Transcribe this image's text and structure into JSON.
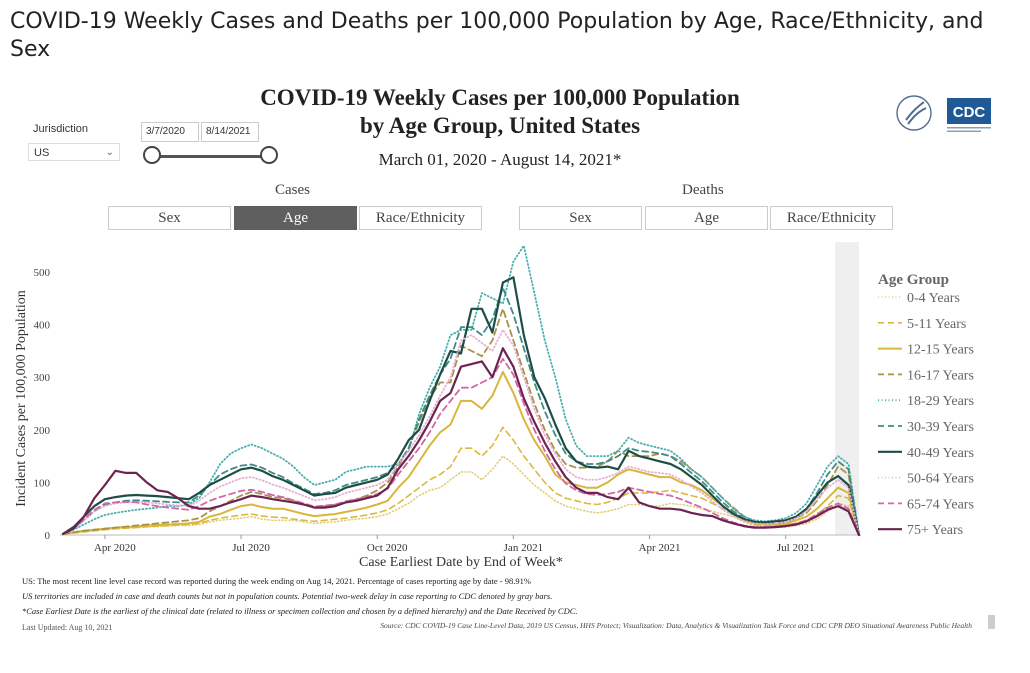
{
  "page_title": "COVID-19 Weekly Cases and Deaths per 100,000 Population by Age, Race/Ethnicity, and Sex",
  "dashboard": {
    "title_line1": "COVID-19 Weekly Cases per 100,000 Population",
    "title_line2": "by Age Group, United States",
    "subtitle": "March 01, 2020 - August 14, 2021*"
  },
  "filters": {
    "jurisdiction_label": "Jurisdiction",
    "jurisdiction_value": "US",
    "date_start": "3/7/2020",
    "date_end": "8/14/2021"
  },
  "cases_group": {
    "label": "Cases",
    "tabs": [
      "Sex",
      "Age",
      "Race/Ethnicity"
    ],
    "active": "Age"
  },
  "deaths_group": {
    "label": "Deaths",
    "tabs": [
      "Sex",
      "Age",
      "Race/Ethnicity"
    ]
  },
  "chart_data": {
    "type": "line",
    "xlabel": "Case Earliest Date by End of Week*",
    "ylabel": "Incident Cases per 100,000 Population",
    "ylim": [
      0,
      560
    ],
    "yticks": [
      0,
      100,
      200,
      300,
      400,
      500
    ],
    "xticks": [
      {
        "label": "Apr 2020",
        "week": 4
      },
      {
        "label": "Jul 2020",
        "week": 17
      },
      {
        "label": "Oct 2020",
        "week": 30
      },
      {
        "label": "Jan 2021",
        "week": 43
      },
      {
        "label": "Apr 2021",
        "week": 56
      },
      {
        "label": "Jul 2021",
        "week": 69
      }
    ],
    "x_start": "2020-03-07",
    "x_end": "2021-08-14",
    "x_interval": "weekly",
    "grid": false,
    "legend_title": "Age Group",
    "legend_position": "right",
    "shaded_region_weeks": [
      74,
      76
    ],
    "series": [
      {
        "name": "0-4 Years",
        "color": "#e3cd74",
        "dash": "1,2.5",
        "width": 1.6,
        "values": [
          2,
          4,
          6,
          8,
          10,
          12,
          13,
          14,
          15,
          16,
          17,
          18,
          18,
          20,
          25,
          28,
          30,
          32,
          35,
          30,
          28,
          28,
          28,
          25,
          22,
          24,
          25,
          28,
          30,
          32,
          35,
          40,
          50,
          60,
          75,
          85,
          90,
          105,
          120,
          120,
          105,
          125,
          150,
          135,
          115,
          95,
          80,
          65,
          55,
          50,
          45,
          42,
          45,
          50,
          58,
          58,
          55,
          55,
          60,
          58,
          55,
          50,
          45,
          40,
          35,
          25,
          18,
          15,
          15,
          15,
          18,
          22,
          30,
          45,
          60,
          55,
          0
        ]
      },
      {
        "name": "5-11 Years",
        "color": "#dbb940",
        "dash": "6,4",
        "width": 1.6,
        "values": [
          2,
          4,
          6,
          8,
          10,
          12,
          13,
          14,
          16,
          17,
          18,
          19,
          20,
          22,
          28,
          32,
          35,
          38,
          40,
          36,
          34,
          33,
          30,
          28,
          26,
          28,
          30,
          32,
          35,
          38,
          42,
          48,
          60,
          75,
          90,
          105,
          115,
          130,
          165,
          165,
          150,
          170,
          205,
          180,
          150,
          125,
          100,
          80,
          70,
          65,
          60,
          58,
          62,
          70,
          80,
          80,
          80,
          82,
          85,
          80,
          75,
          70,
          60,
          50,
          40,
          28,
          20,
          18,
          18,
          20,
          22,
          28,
          38,
          55,
          75,
          70,
          0
        ]
      },
      {
        "name": "12-15 Years",
        "color": "#d8b63c",
        "dash": "",
        "width": 2,
        "values": [
          2,
          5,
          8,
          10,
          12,
          14,
          15,
          16,
          18,
          19,
          20,
          21,
          22,
          25,
          35,
          40,
          48,
          55,
          58,
          53,
          50,
          50,
          45,
          40,
          36,
          38,
          40,
          44,
          48,
          52,
          58,
          65,
          90,
          110,
          140,
          170,
          195,
          210,
          255,
          255,
          240,
          265,
          310,
          270,
          220,
          180,
          150,
          115,
          100,
          95,
          90,
          90,
          100,
          115,
          125,
          120,
          115,
          110,
          110,
          100,
          95,
          85,
          70,
          55,
          42,
          30,
          22,
          20,
          20,
          22,
          28,
          35,
          50,
          70,
          90,
          80,
          0
        ]
      },
      {
        "name": "16-17 Years",
        "color": "#a89248",
        "dash": "6,4",
        "width": 1.8,
        "values": [
          2,
          5,
          8,
          10,
          12,
          14,
          16,
          18,
          20,
          22,
          24,
          26,
          28,
          32,
          45,
          55,
          65,
          75,
          82,
          78,
          72,
          70,
          65,
          58,
          52,
          55,
          58,
          62,
          68,
          75,
          85,
          100,
          130,
          165,
          215,
          260,
          290,
          290,
          360,
          350,
          340,
          370,
          430,
          370,
          310,
          250,
          200,
          160,
          135,
          128,
          128,
          130,
          140,
          160,
          150,
          150,
          150,
          155,
          150,
          140,
          125,
          110,
          90,
          70,
          52,
          36,
          26,
          22,
          22,
          25,
          32,
          42,
          65,
          95,
          130,
          115,
          0
        ]
      },
      {
        "name": "18-29 Years",
        "color": "#4aaeb1",
        "dash": "1,2.5",
        "width": 1.8,
        "values": [
          2,
          10,
          20,
          30,
          38,
          42,
          45,
          48,
          50,
          52,
          55,
          55,
          58,
          70,
          100,
          135,
          155,
          165,
          172,
          165,
          155,
          145,
          130,
          110,
          95,
          100,
          105,
          120,
          125,
          130,
          130,
          130,
          135,
          160,
          230,
          280,
          320,
          380,
          390,
          390,
          460,
          450,
          440,
          520,
          550,
          460,
          370,
          300,
          220,
          170,
          150,
          150,
          150,
          160,
          185,
          175,
          170,
          165,
          160,
          145,
          125,
          110,
          90,
          70,
          50,
          35,
          28,
          26,
          28,
          32,
          42,
          60,
          95,
          130,
          150,
          135,
          0
        ]
      },
      {
        "name": "30-39 Years",
        "color": "#3e8c84",
        "dash": "6,4",
        "width": 1.8,
        "values": [
          2,
          12,
          28,
          45,
          58,
          62,
          65,
          66,
          65,
          64,
          63,
          62,
          62,
          75,
          95,
          115,
          125,
          132,
          134,
          128,
          118,
          110,
          98,
          88,
          78,
          80,
          85,
          95,
          100,
          105,
          110,
          118,
          135,
          165,
          220,
          265,
          305,
          335,
          395,
          395,
          380,
          410,
          470,
          420,
          355,
          290,
          235,
          190,
          155,
          140,
          135,
          135,
          140,
          150,
          165,
          160,
          158,
          155,
          150,
          135,
          118,
          102,
          82,
          62,
          45,
          32,
          25,
          23,
          23,
          27,
          35,
          50,
          80,
          115,
          140,
          125,
          0
        ]
      },
      {
        "name": "40-49 Years",
        "color": "#1e4d48",
        "dash": "",
        "width": 2.2,
        "values": [
          2,
          15,
          35,
          55,
          68,
          72,
          75,
          76,
          75,
          74,
          72,
          70,
          68,
          80,
          95,
          105,
          115,
          125,
          128,
          122,
          112,
          105,
          95,
          85,
          75,
          78,
          80,
          90,
          95,
          100,
          105,
          115,
          145,
          180,
          200,
          255,
          305,
          350,
          345,
          430,
          430,
          385,
          480,
          490,
          380,
          300,
          260,
          210,
          165,
          140,
          130,
          128,
          130,
          125,
          160,
          150,
          145,
          140,
          135,
          125,
          110,
          95,
          75,
          55,
          40,
          30,
          25,
          24,
          26,
          28,
          35,
          50,
          75,
          100,
          112,
          95,
          0
        ]
      },
      {
        "name": "50-64 Years",
        "color": "#e6b1d2",
        "dash": "1,2.5",
        "width": 1.8,
        "values": [
          2,
          12,
          28,
          45,
          55,
          60,
          62,
          63,
          62,
          60,
          58,
          56,
          55,
          65,
          80,
          92,
          100,
          108,
          110,
          104,
          96,
          90,
          82,
          74,
          66,
          68,
          72,
          80,
          85,
          90,
          95,
          105,
          135,
          160,
          190,
          225,
          265,
          300,
          370,
          380,
          365,
          350,
          390,
          360,
          300,
          240,
          190,
          155,
          125,
          110,
          105,
          105,
          110,
          118,
          130,
          125,
          120,
          118,
          115,
          105,
          92,
          80,
          64,
          48,
          36,
          27,
          22,
          21,
          22,
          25,
          32,
          45,
          68,
          90,
          105,
          90,
          0
        ]
      },
      {
        "name": "65-74 Years",
        "color": "#d167a6",
        "dash": "6,4",
        "width": 1.8,
        "values": [
          2,
          12,
          30,
          48,
          60,
          62,
          63,
          62,
          58,
          55,
          52,
          50,
          48,
          55,
          65,
          72,
          78,
          84,
          86,
          82,
          76,
          72,
          66,
          60,
          54,
          56,
          58,
          64,
          68,
          72,
          78,
          88,
          115,
          140,
          165,
          195,
          230,
          255,
          280,
          280,
          290,
          300,
          335,
          305,
          250,
          200,
          160,
          125,
          98,
          85,
          78,
          76,
          78,
          82,
          90,
          86,
          82,
          78,
          75,
          68,
          60,
          52,
          42,
          32,
          24,
          18,
          15,
          15,
          16,
          18,
          22,
          28,
          40,
          52,
          60,
          50,
          0
        ]
      },
      {
        "name": "75+ Years",
        "color": "#6d2350",
        "dash": "",
        "width": 2.2,
        "values": [
          2,
          12,
          35,
          70,
          95,
          122,
          118,
          118,
          100,
          85,
          82,
          70,
          55,
          50,
          50,
          55,
          62,
          68,
          75,
          72,
          68,
          65,
          62,
          58,
          52,
          52,
          55,
          62,
          65,
          70,
          75,
          90,
          125,
          150,
          180,
          215,
          255,
          270,
          320,
          325,
          330,
          300,
          355,
          320,
          260,
          215,
          175,
          140,
          110,
          90,
          80,
          80,
          72,
          68,
          90,
          62,
          55,
          50,
          50,
          48,
          42,
          38,
          36,
          28,
          22,
          17,
          14,
          14,
          15,
          17,
          20,
          26,
          36,
          48,
          55,
          45,
          0
        ]
      }
    ]
  },
  "footnotes": {
    "line1": "US: The most recent line level case record was reported during the week ending on Aug 14, 2021. Percentage of cases reporting age by date - 98.91%",
    "line2": "US territories are included in case and death counts but not in population counts. Potential two-week delay in case reporting to CDC denoted by gray bars.",
    "line3": "*Case Earliest Date is the earliest of the clinical date (related to illness or specimen collection and chosen by a defined hierarchy) and the Date Received by CDC.",
    "last_updated": "Last Updated: Aug 10, 2021",
    "source": "Source: CDC COVID-19 Case Line-Level Data, 2019 US Census, HHS Protect; Visualization: Data, Analytics & Visualization Task Force and CDC CPR DEO Situational Awareness Public Health"
  },
  "logo": {
    "text": "CDC",
    "color": "#1f5a96"
  }
}
